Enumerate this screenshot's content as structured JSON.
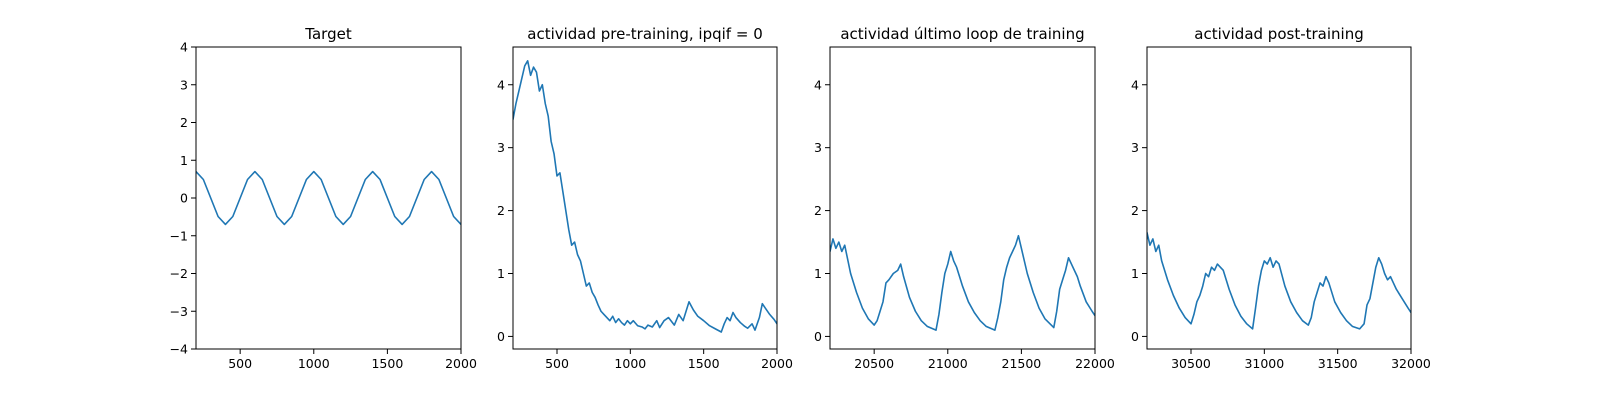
{
  "colors": {
    "line": "#1f77b4",
    "axes": "#000000",
    "background": "#ffffff"
  },
  "chart_data": [
    {
      "type": "line",
      "title": "Target",
      "xlabel": "",
      "ylabel": "",
      "xlim": [
        200,
        2000
      ],
      "ylim": [
        -4,
        4
      ],
      "xticks": [
        500,
        1000,
        1500,
        2000
      ],
      "yticks": [
        -4,
        -3,
        -2,
        -1,
        0,
        1,
        2,
        3,
        4
      ],
      "grid": false,
      "series": [
        {
          "x": [
            200,
            250,
            300,
            350,
            400,
            450,
            500,
            550,
            600,
            650,
            700,
            750,
            800,
            850,
            900,
            950,
            1000,
            1050,
            1100,
            1150,
            1200,
            1250,
            1300,
            1350,
            1400,
            1450,
            1500,
            1550,
            1600,
            1650,
            1700,
            1750,
            1800,
            1850,
            1900,
            1950,
            2000
          ],
          "y": [
            0.7,
            0.49,
            0.0,
            -0.49,
            -0.7,
            -0.49,
            0.0,
            0.49,
            0.7,
            0.49,
            0.0,
            -0.49,
            -0.7,
            -0.49,
            0.0,
            0.49,
            0.7,
            0.49,
            0.0,
            -0.49,
            -0.7,
            -0.49,
            0.0,
            0.49,
            0.7,
            0.49,
            0.0,
            -0.49,
            -0.7,
            -0.49,
            0.0,
            0.49,
            0.7,
            0.49,
            0.0,
            -0.49,
            -0.7
          ]
        }
      ]
    },
    {
      "type": "line",
      "title": "actividad pre-training, ipqif = 0",
      "xlabel": "",
      "ylabel": "",
      "xlim": [
        200,
        2000
      ],
      "ylim": [
        -0.2,
        4.6
      ],
      "xticks": [
        500,
        1000,
        1500,
        2000
      ],
      "yticks": [
        0,
        1,
        2,
        3,
        4
      ],
      "grid": false,
      "series": [
        {
          "x": [
            200,
            220,
            240,
            260,
            280,
            300,
            320,
            340,
            360,
            380,
            400,
            420,
            440,
            460,
            480,
            500,
            520,
            540,
            560,
            580,
            600,
            620,
            640,
            660,
            680,
            700,
            720,
            740,
            760,
            780,
            800,
            820,
            840,
            860,
            880,
            900,
            920,
            940,
            960,
            980,
            1000,
            1020,
            1050,
            1080,
            1100,
            1120,
            1150,
            1180,
            1200,
            1230,
            1260,
            1300,
            1330,
            1360,
            1380,
            1400,
            1430,
            1460,
            1500,
            1540,
            1580,
            1620,
            1640,
            1660,
            1680,
            1700,
            1720,
            1750,
            1780,
            1800,
            1830,
            1850,
            1880,
            1900,
            1920,
            1950,
            1980,
            2000
          ],
          "y": [
            3.45,
            3.7,
            3.9,
            4.1,
            4.3,
            4.38,
            4.15,
            4.28,
            4.2,
            3.9,
            4.0,
            3.7,
            3.5,
            3.1,
            2.9,
            2.55,
            2.6,
            2.3,
            2.0,
            1.7,
            1.45,
            1.5,
            1.3,
            1.2,
            1.0,
            0.8,
            0.85,
            0.7,
            0.62,
            0.5,
            0.4,
            0.35,
            0.3,
            0.25,
            0.32,
            0.22,
            0.28,
            0.22,
            0.18,
            0.25,
            0.2,
            0.25,
            0.17,
            0.15,
            0.12,
            0.18,
            0.15,
            0.25,
            0.14,
            0.25,
            0.3,
            0.18,
            0.35,
            0.25,
            0.4,
            0.55,
            0.42,
            0.32,
            0.25,
            0.17,
            0.12,
            0.07,
            0.2,
            0.3,
            0.25,
            0.38,
            0.3,
            0.22,
            0.16,
            0.13,
            0.2,
            0.1,
            0.3,
            0.52,
            0.45,
            0.35,
            0.27,
            0.2
          ]
        }
      ]
    },
    {
      "type": "line",
      "title": "actividad último loop de training",
      "xlabel": "",
      "ylabel": "",
      "xlim": [
        20200,
        22000
      ],
      "ylim": [
        -0.2,
        4.6
      ],
      "xticks": [
        20500,
        21000,
        21500,
        22000
      ],
      "yticks": [
        0,
        1,
        2,
        3,
        4
      ],
      "grid": false,
      "series": [
        {
          "x": [
            20200,
            20220,
            20240,
            20260,
            20280,
            20300,
            20340,
            20380,
            20420,
            20460,
            20500,
            20520,
            20540,
            20560,
            20580,
            20600,
            20630,
            20660,
            20680,
            20700,
            20740,
            20780,
            20820,
            20860,
            20920,
            20940,
            20960,
            20980,
            21000,
            21020,
            21040,
            21060,
            21080,
            21100,
            21140,
            21180,
            21220,
            21260,
            21320,
            21340,
            21360,
            21380,
            21400,
            21420,
            21440,
            21460,
            21480,
            21500,
            21540,
            21580,
            21620,
            21660,
            21720,
            21740,
            21760,
            21780,
            21800,
            21820,
            21840,
            21860,
            21880,
            21900,
            21940,
            21980,
            22000
          ],
          "y": [
            1.35,
            1.55,
            1.4,
            1.5,
            1.35,
            1.45,
            1.0,
            0.7,
            0.45,
            0.28,
            0.18,
            0.25,
            0.4,
            0.55,
            0.85,
            0.9,
            1.0,
            1.05,
            1.15,
            0.95,
            0.62,
            0.4,
            0.25,
            0.16,
            0.1,
            0.35,
            0.7,
            1.0,
            1.15,
            1.35,
            1.2,
            1.1,
            0.95,
            0.8,
            0.55,
            0.38,
            0.25,
            0.16,
            0.1,
            0.3,
            0.55,
            0.9,
            1.1,
            1.25,
            1.35,
            1.45,
            1.6,
            1.4,
            1.0,
            0.7,
            0.45,
            0.28,
            0.14,
            0.4,
            0.75,
            0.9,
            1.05,
            1.25,
            1.15,
            1.05,
            0.95,
            0.8,
            0.55,
            0.4,
            0.33
          ]
        }
      ]
    },
    {
      "type": "line",
      "title": "actividad post-training",
      "xlabel": "",
      "ylabel": "",
      "xlim": [
        30200,
        32000
      ],
      "ylim": [
        -0.2,
        4.6
      ],
      "xticks": [
        30500,
        31000,
        31500,
        32000
      ],
      "yticks": [
        0,
        1,
        2,
        3,
        4
      ],
      "grid": false,
      "series": [
        {
          "x": [
            30200,
            30220,
            30240,
            30260,
            30280,
            30300,
            30340,
            30380,
            30420,
            30460,
            30500,
            30520,
            30540,
            30560,
            30580,
            30600,
            30620,
            30640,
            30660,
            30680,
            30700,
            30720,
            30760,
            30800,
            30840,
            30880,
            30920,
            30940,
            30960,
            30980,
            31000,
            31020,
            31040,
            31060,
            31080,
            31100,
            31140,
            31180,
            31220,
            31260,
            31300,
            31320,
            31340,
            31360,
            31380,
            31400,
            31420,
            31440,
            31480,
            31520,
            31560,
            31600,
            31650,
            31680,
            31700,
            31720,
            31740,
            31760,
            31780,
            31800,
            31820,
            31840,
            31860,
            31880,
            31900,
            31940,
            31980,
            32000
          ],
          "y": [
            1.65,
            1.45,
            1.55,
            1.35,
            1.45,
            1.2,
            0.9,
            0.65,
            0.45,
            0.3,
            0.2,
            0.35,
            0.55,
            0.65,
            0.8,
            1.0,
            0.95,
            1.1,
            1.05,
            1.15,
            1.1,
            1.05,
            0.75,
            0.5,
            0.32,
            0.2,
            0.12,
            0.45,
            0.8,
            1.05,
            1.2,
            1.15,
            1.25,
            1.1,
            1.2,
            1.15,
            0.8,
            0.55,
            0.38,
            0.25,
            0.18,
            0.3,
            0.55,
            0.7,
            0.85,
            0.8,
            0.95,
            0.85,
            0.55,
            0.38,
            0.25,
            0.16,
            0.12,
            0.2,
            0.5,
            0.6,
            0.85,
            1.1,
            1.25,
            1.15,
            1.0,
            0.9,
            0.95,
            0.85,
            0.75,
            0.6,
            0.45,
            0.38
          ]
        }
      ]
    }
  ]
}
